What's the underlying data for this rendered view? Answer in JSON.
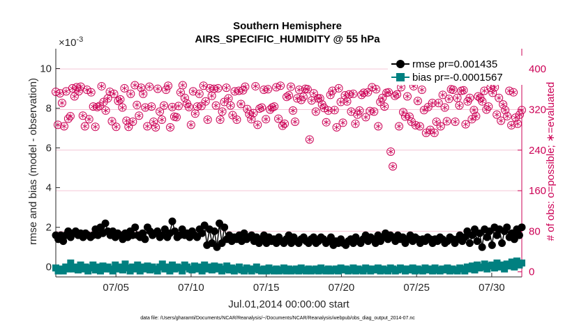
{
  "chart_data": {
    "type": "line",
    "title_line1": "Southern Hemisphere",
    "title_line2": "AIRS_SPECIFIC_HUMIDITY @ 55 hPa",
    "exponent_label": "×10",
    "exponent_power": "-3",
    "ylabel_left": "rmse and bias (model - observation)",
    "ylabel_right": "# of obs: o=possible; ∗=evaluated",
    "xlabel": "Jul.01,2014 00:00:00 start",
    "footnote": "data file: /Users/gharamti/Documents/NCAR/Reanalysis/~/Documents/NCAR/Reanalysis/webpub/obs_diag_output_2014-07.nc",
    "x_ticks": [
      "07/05",
      "07/10",
      "07/15",
      "07/20",
      "07/25",
      "07/30"
    ],
    "x_tick_days": [
      5,
      10,
      15,
      20,
      25,
      30
    ],
    "xlim": [
      1,
      32
    ],
    "y_left_ticks": [
      "0",
      "2",
      "4",
      "6",
      "8",
      "10"
    ],
    "y_left_tick_values": [
      0,
      2,
      4,
      6,
      8,
      10
    ],
    "ylim_left": [
      -0.5,
      11
    ],
    "y_right_ticks": [
      "0",
      "80",
      "160",
      "240",
      "320",
      "400"
    ],
    "y_right_tick_values": [
      0,
      80,
      160,
      240,
      320,
      400
    ],
    "ylim_right": [
      -10,
      440
    ],
    "colors": {
      "rmse": "#000000",
      "bias": "#008080",
      "obs": "#cc0055",
      "grid": "#f4c6d6",
      "zero": "#bbbbbb"
    },
    "series": [
      {
        "name": "rmse pr=0.001435",
        "axis": "left",
        "marker": "circle",
        "values": [
          1.6,
          1.4,
          1.6,
          1.3,
          1.6,
          1.8,
          1.5,
          1.7,
          1.8,
          1.6,
          1.7,
          1.5,
          1.7,
          1.6,
          1.5,
          1.6,
          1.9,
          1.6,
          2.0,
          1.7,
          2.2,
          1.8,
          1.6,
          1.8,
          1.5,
          1.7,
          1.6,
          1.4,
          1.7,
          1.5,
          1.8,
          1.6,
          2.0,
          1.6,
          1.5,
          1.7,
          1.4,
          2.0,
          1.8,
          1.6,
          1.7,
          1.8,
          1.5,
          1.6,
          1.9,
          1.5,
          1.7,
          2.3,
          1.8,
          1.5,
          1.6,
          1.9,
          1.6,
          1.7,
          1.5,
          1.8,
          1.6,
          1.5,
          1.9,
          1.7,
          2.1,
          1.1,
          1.9,
          1.2,
          1.8,
          1.0,
          2.2,
          1.2,
          2.0,
          1.4,
          1.6,
          1.3,
          1.5,
          1.4,
          1.6,
          1.3,
          1.7,
          1.4,
          1.5,
          1.6,
          1.3,
          1.5,
          1.2,
          1.4,
          1.6,
          1.2,
          1.5,
          1.3,
          1.4,
          1.2,
          1.5,
          1.3,
          1.2,
          1.4,
          1.6,
          1.2,
          1.5,
          1.3,
          1.2,
          1.4,
          1.5,
          1.3,
          1.2,
          1.4,
          1.5,
          1.2,
          1.3,
          1.5,
          1.4,
          1.2,
          1.3,
          1.5,
          1.1,
          1.3,
          1.2,
          1.4,
          1.2,
          1.1,
          1.3,
          1.4,
          1.2,
          1.5,
          1.3,
          1.2,
          1.4,
          1.6,
          1.3,
          1.5,
          1.4,
          1.2,
          1.6,
          1.3,
          1.5,
          1.7,
          1.4,
          1.6,
          1.5,
          1.3,
          1.6,
          1.4,
          1.5,
          1.2,
          1.4,
          1.6,
          1.3,
          1.5,
          1.4,
          1.2,
          1.4,
          1.3,
          1.5,
          1.4,
          1.2,
          1.4,
          1.3,
          1.5,
          1.4,
          1.2,
          1.3,
          1.5,
          1.4,
          1.2,
          1.4,
          1.6,
          1.3,
          1.5,
          1.8,
          1.2,
          1.6,
          1.9,
          1.3,
          1.7,
          1.0,
          1.9,
          1.5,
          1.8,
          1.1,
          2.0,
          1.6,
          1.9,
          1.2,
          1.8,
          2.0,
          1.5,
          1.7,
          1.4,
          1.9,
          1.6,
          2.0
        ]
      },
      {
        "name": "bias pr=-0.0001567",
        "axis": "left",
        "marker": "square",
        "values": [
          -0.05,
          -0.2,
          -0.1,
          -0.2,
          0.0,
          -0.1,
          0.2,
          -0.1,
          0.0,
          -0.15,
          0.1,
          -0.1,
          0.0,
          -0.2,
          -0.05,
          0.1,
          -0.15,
          0.0,
          -0.2,
          0.05,
          -0.1,
          0.0,
          -0.1,
          -0.2,
          0.1,
          -0.1,
          0.0,
          -0.15,
          0.15,
          -0.05,
          -0.2,
          0.0,
          -0.1,
          0.1,
          -0.2,
          0.0,
          -0.1,
          0.05,
          -0.15,
          0.0,
          -0.1,
          -0.2,
          0.0,
          0.15,
          -0.1,
          0.0,
          -0.2,
          0.1,
          -0.1,
          0.0,
          -0.05,
          -0.2,
          0.1,
          0.0,
          -0.1,
          -0.15,
          0.05,
          -0.1,
          0.0,
          -0.2,
          0.1,
          -0.1,
          0.0,
          -0.15,
          0.05,
          -0.1,
          0.0,
          -0.2,
          -0.1,
          0.05,
          -0.15,
          -0.05,
          -0.2,
          -0.1,
          0.0,
          -0.15,
          -0.2,
          -0.05,
          -0.1,
          -0.2,
          -0.1,
          0.0,
          -0.15,
          -0.2,
          -0.1,
          -0.2,
          -0.05,
          -0.15,
          -0.2,
          -0.1,
          -0.2,
          -0.15,
          -0.05,
          -0.2,
          -0.1,
          -0.2,
          -0.15,
          -0.1,
          -0.2,
          -0.05,
          -0.15,
          -0.2,
          -0.1,
          -0.2,
          -0.15,
          -0.1,
          -0.2,
          -0.05,
          -0.15,
          -0.2,
          -0.1,
          -0.2,
          -0.15,
          -0.1,
          -0.2,
          -0.05,
          -0.15,
          -0.1,
          -0.2,
          -0.15,
          -0.05,
          -0.2,
          -0.1,
          -0.15,
          -0.2,
          -0.05,
          -0.1,
          -0.2,
          -0.1,
          -0.15,
          -0.05,
          -0.2,
          -0.1,
          -0.15,
          -0.2,
          -0.05,
          -0.1,
          -0.2,
          -0.15,
          -0.05,
          -0.1,
          -0.2,
          -0.1,
          -0.15,
          -0.05,
          -0.2,
          -0.1,
          -0.15,
          -0.2,
          -0.05,
          -0.15,
          -0.1,
          -0.2,
          -0.05,
          -0.15,
          -0.2,
          -0.1,
          -0.15,
          -0.05,
          -0.2,
          -0.1,
          -0.15,
          -0.2,
          -0.05,
          -0.1,
          -0.2,
          0.0,
          -0.1,
          0.05,
          -0.15,
          0.1,
          -0.05,
          0.0,
          0.15,
          -0.1,
          0.05,
          0.1,
          -0.05,
          0.2,
          0.0,
          0.1,
          -0.1,
          0.15,
          0.05,
          0.25,
          0.0,
          0.3,
          0.1,
          0.2
        ]
      },
      {
        "name": "possible obs",
        "axis": "right",
        "marker": "circle-open",
        "values": [
          355,
          290,
          352,
          333,
          287,
          356,
          302,
          307,
          362,
          346,
          364,
          356,
          365,
          308,
          287,
          359,
          301,
          354,
          326,
          286,
          325,
          327,
          366,
          335,
          318,
          342,
          355,
          297,
          351,
          286,
          337,
          340,
          324,
          362,
          298,
          286,
          351,
          296,
          368,
          329,
          308,
          363,
          351,
          324,
          287,
          365,
          326,
          296,
          285,
          361,
          316,
          300,
          328,
          359,
          367,
          285,
          325,
          306,
          305,
          327,
          354,
          368,
          343,
          332,
          325,
          290,
          356,
          312,
          326,
          351,
          327,
          367,
          336,
          300,
          362,
          347,
          361,
          328,
          362,
          300,
          316,
          335,
          363,
          342,
          328,
          309,
          356,
          300,
          357,
          331,
          358,
          365,
          321,
          311,
          301,
          313,
          366,
          290,
          322,
          324,
          359,
          301,
          360,
          320,
          324,
          326,
          364,
          302,
          367,
          288,
          292,
          345,
          348,
          365,
          318,
          296,
          342,
          359,
          339,
          345,
          361,
          360,
          261,
          338,
          352,
          316,
          342,
          342,
          330,
          323,
          295,
          318,
          349,
          357,
          319,
          285,
          362,
          335,
          294,
          348,
          336,
          350,
          316,
          351,
          292,
          310,
          318,
          349,
          353,
          305,
          354,
          317,
          364,
          316,
          360,
          287,
          335,
          343,
          326,
          353,
          354,
          237,
          208,
          347,
          350,
          287,
          364,
          315,
          306,
          346,
          306,
          296,
          366,
          289,
          337,
          287,
          359,
          319,
          274,
          325,
          280,
          333,
          274,
          296,
          333,
          287,
          349,
          324,
          297,
          341,
          360,
          359,
          296,
          343,
          328,
          357,
          358,
          291,
          336,
          343,
          301,
          319,
          307,
          346,
          343,
          336,
          357,
          320,
          326,
          363,
          353,
          364,
          310,
          343,
          298,
          330,
          319,
          307,
          357,
          289,
          354,
          304,
          292,
          310,
          319
        ]
      }
    ],
    "grid": true,
    "legend_position": "top-right"
  }
}
